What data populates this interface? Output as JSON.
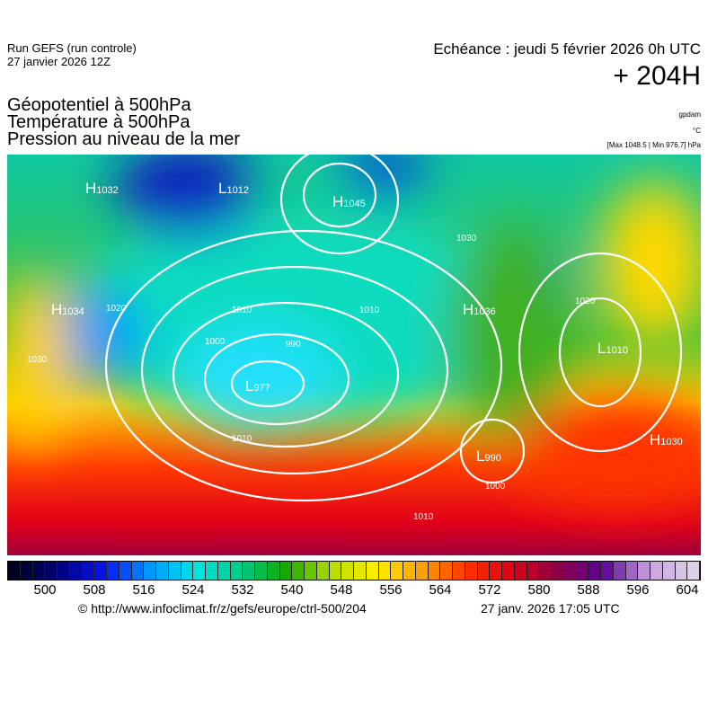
{
  "header": {
    "run": "Run GEFS (run controle)",
    "run_date": "27 janvier 2026 12Z",
    "echeance": "Echéance : jeudi 5 février 2026 0h UTC",
    "lead": "+ 204H",
    "fields": [
      "Géopotentiel à 500hPa",
      "Température à 500hPa",
      "Pression au niveau de la mer"
    ],
    "units": [
      "gpdam",
      "°C",
      "[Max 1048.5 | Min 976.7] hPa"
    ]
  },
  "map": {
    "centers": [
      {
        "type": "H",
        "value": "1032"
      },
      {
        "type": "L",
        "value": "1012"
      },
      {
        "type": "H",
        "value": "1045"
      },
      {
        "type": "H",
        "value": "1034"
      },
      {
        "type": "L",
        "value": "977"
      },
      {
        "type": "H",
        "value": "1036"
      },
      {
        "type": "L",
        "value": "1010"
      },
      {
        "type": "H",
        "value": "1030"
      },
      {
        "type": "L",
        "value": "990"
      }
    ],
    "isobar_labels": [
      "1030",
      "1020",
      "1010",
      "1000",
      "990",
      "1010",
      "1030",
      "1020",
      "1010",
      "1010",
      "1000"
    ]
  },
  "colorbar": {
    "ticks": [
      "500",
      "508",
      "516",
      "524",
      "532",
      "540",
      "548",
      "556",
      "564",
      "572",
      "580",
      "588",
      "596",
      "604"
    ],
    "stops": [
      "#000022",
      "#00007a",
      "#0a14f0",
      "#0096ff",
      "#00e6e6",
      "#00cc88",
      "#16a800",
      "#b4dc00",
      "#ffee00",
      "#ffa000",
      "#ff3200",
      "#dc0014",
      "#8c0046",
      "#5a0096",
      "#c8a0dc",
      "#dcd0e6"
    ]
  },
  "footer": {
    "credit": "© http://www.infoclimat.fr/z/gefs/europe/ctrl-500/204",
    "timestamp": "27 janv. 2026 17:05 UTC"
  }
}
